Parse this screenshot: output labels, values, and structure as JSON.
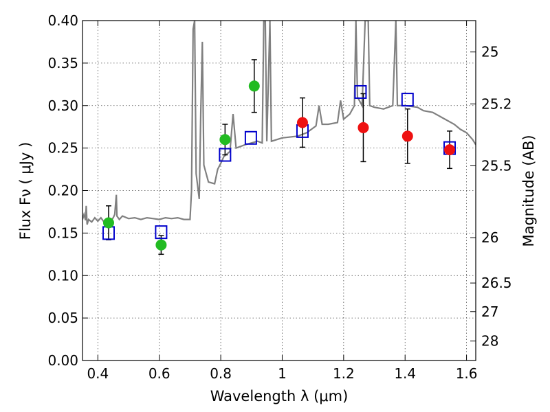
{
  "chart_data": {
    "type": "scatter",
    "title": "",
    "xlabel": "Wavelength  λ (μm)",
    "ylabel": "Flux  Fν  ( μJy )",
    "ylabel_right": "Magnitude (AB)",
    "xlim": [
      0.35,
      1.63
    ],
    "ylim": [
      0.0,
      0.4
    ],
    "grid": true,
    "x_ticks": [
      0.4,
      0.6,
      0.8,
      1.0,
      1.2,
      1.4,
      1.6
    ],
    "x_tick_labels": [
      "0.4",
      "0.6",
      "0.8",
      "1",
      "1.2",
      "1.4",
      "1.6"
    ],
    "y_ticks": [
      0.0,
      0.05,
      0.1,
      0.15,
      0.2,
      0.25,
      0.3,
      0.35,
      0.4
    ],
    "y_tick_labels": [
      "0.00",
      "0.05",
      "0.10",
      "0.15",
      "0.20",
      "0.25",
      "0.30",
      "0.35",
      "0.40"
    ],
    "right_ticks": [
      {
        "label": "25",
        "mag": 25.0
      },
      {
        "label": "25.2",
        "mag": 25.2
      },
      {
        "label": "25.5",
        "mag": 25.5
      },
      {
        "label": "26",
        "mag": 26.0
      },
      {
        "label": "26.5",
        "mag": 26.5
      },
      {
        "label": "27",
        "mag": 27.0
      },
      {
        "label": "28",
        "mag": 28.0
      }
    ],
    "series": [
      {
        "name": "green points",
        "marker": "circle",
        "color": "#22bb22",
        "points": [
          {
            "x": 0.435,
            "y": 0.162,
            "err": 0.02
          },
          {
            "x": 0.606,
            "y": 0.136,
            "err": 0.011
          },
          {
            "x": 0.814,
            "y": 0.26,
            "err": 0.018
          },
          {
            "x": 0.909,
            "y": 0.323,
            "err": 0.031
          }
        ]
      },
      {
        "name": "red points",
        "marker": "circle",
        "color": "#ee1111",
        "points": [
          {
            "x": 1.066,
            "y": 0.28,
            "err": 0.029
          },
          {
            "x": 1.264,
            "y": 0.274,
            "err": 0.04
          },
          {
            "x": 1.408,
            "y": 0.264,
            "err": 0.032
          },
          {
            "x": 1.545,
            "y": 0.248,
            "err": 0.022
          }
        ]
      },
      {
        "name": "model photometry",
        "marker": "square",
        "color": "#0000cc",
        "points": [
          {
            "x": 0.435,
            "y": 0.15
          },
          {
            "x": 0.606,
            "y": 0.151
          },
          {
            "x": 0.814,
            "y": 0.242
          },
          {
            "x": 0.898,
            "y": 0.262
          },
          {
            "x": 1.066,
            "y": 0.27
          },
          {
            "x": 1.255,
            "y": 0.316
          },
          {
            "x": 1.408,
            "y": 0.307
          },
          {
            "x": 1.545,
            "y": 0.25
          }
        ]
      },
      {
        "name": "model spectrum",
        "type": "line",
        "color": "#808080",
        "points": [
          [
            0.35,
            0.166
          ],
          [
            0.355,
            0.172
          ],
          [
            0.36,
            0.165
          ],
          [
            0.362,
            0.182
          ],
          [
            0.365,
            0.16
          ],
          [
            0.37,
            0.166
          ],
          [
            0.38,
            0.163
          ],
          [
            0.39,
            0.168
          ],
          [
            0.4,
            0.164
          ],
          [
            0.41,
            0.168
          ],
          [
            0.42,
            0.163
          ],
          [
            0.43,
            0.166
          ],
          [
            0.44,
            0.164
          ],
          [
            0.45,
            0.168
          ],
          [
            0.455,
            0.172
          ],
          [
            0.46,
            0.195
          ],
          [
            0.462,
            0.17
          ],
          [
            0.47,
            0.166
          ],
          [
            0.48,
            0.17
          ],
          [
            0.5,
            0.167
          ],
          [
            0.52,
            0.168
          ],
          [
            0.54,
            0.166
          ],
          [
            0.56,
            0.168
          ],
          [
            0.58,
            0.167
          ],
          [
            0.6,
            0.166
          ],
          [
            0.62,
            0.168
          ],
          [
            0.64,
            0.167
          ],
          [
            0.66,
            0.168
          ],
          [
            0.68,
            0.166
          ],
          [
            0.7,
            0.166
          ],
          [
            0.705,
            0.2
          ],
          [
            0.71,
            0.39
          ],
          [
            0.715,
            0.4
          ],
          [
            0.72,
            0.22
          ],
          [
            0.73,
            0.19
          ],
          [
            0.735,
            0.29
          ],
          [
            0.74,
            0.375
          ],
          [
            0.745,
            0.23
          ],
          [
            0.76,
            0.21
          ],
          [
            0.78,
            0.208
          ],
          [
            0.79,
            0.225
          ],
          [
            0.8,
            0.232
          ],
          [
            0.81,
            0.24
          ],
          [
            0.83,
            0.246
          ],
          [
            0.84,
            0.29
          ],
          [
            0.85,
            0.25
          ],
          [
            0.88,
            0.254
          ],
          [
            0.9,
            0.256
          ],
          [
            0.92,
            0.258
          ],
          [
            0.935,
            0.256
          ],
          [
            0.94,
            0.4
          ],
          [
            0.945,
            0.4
          ],
          [
            0.95,
            0.258
          ],
          [
            0.96,
            0.4
          ],
          [
            0.965,
            0.258
          ],
          [
            1.0,
            0.262
          ],
          [
            1.05,
            0.264
          ],
          [
            1.08,
            0.268
          ],
          [
            1.11,
            0.276
          ],
          [
            1.12,
            0.3
          ],
          [
            1.13,
            0.278
          ],
          [
            1.15,
            0.278
          ],
          [
            1.18,
            0.28
          ],
          [
            1.19,
            0.306
          ],
          [
            1.2,
            0.284
          ],
          [
            1.22,
            0.29
          ],
          [
            1.235,
            0.3
          ],
          [
            1.24,
            0.4
          ],
          [
            1.245,
            0.31
          ],
          [
            1.26,
            0.3
          ],
          [
            1.27,
            0.4
          ],
          [
            1.28,
            0.4
          ],
          [
            1.285,
            0.3
          ],
          [
            1.3,
            0.298
          ],
          [
            1.33,
            0.296
          ],
          [
            1.36,
            0.3
          ],
          [
            1.37,
            0.4
          ],
          [
            1.375,
            0.3
          ],
          [
            1.4,
            0.3
          ],
          [
            1.44,
            0.298
          ],
          [
            1.46,
            0.294
          ],
          [
            1.49,
            0.292
          ],
          [
            1.52,
            0.286
          ],
          [
            1.56,
            0.278
          ],
          [
            1.58,
            0.272
          ],
          [
            1.6,
            0.268
          ],
          [
            1.62,
            0.26
          ],
          [
            1.63,
            0.254
          ]
        ]
      }
    ]
  }
}
